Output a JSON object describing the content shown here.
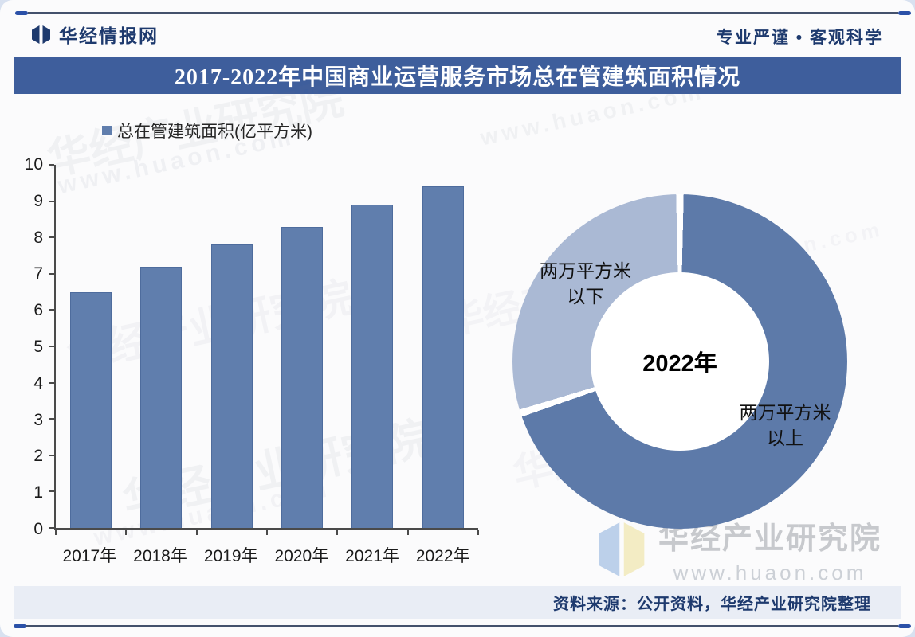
{
  "header": {
    "brand": "华经情报网",
    "slogan": "专业严谨 • 客观科学"
  },
  "title": "2017-2022年中国商业运营服务市场总在管建筑面积情况",
  "legend": {
    "label": "总在管建筑面积(亿平方米)"
  },
  "chart_data": [
    {
      "type": "bar",
      "title": "总在管建筑面积(亿平方米)",
      "categories": [
        "2017年",
        "2018年",
        "2019年",
        "2020年",
        "2021年",
        "2022年"
      ],
      "values": [
        6.5,
        7.2,
        7.8,
        8.3,
        8.9,
        9.4
      ],
      "xlabel": "",
      "ylabel": "",
      "ylim": [
        0,
        10
      ],
      "ytick_step": 1,
      "grid": false,
      "legend_position": "top-left",
      "bar_color": "#607ead",
      "bar_border_color": "#4e6c9d"
    },
    {
      "type": "pie",
      "donut": true,
      "center_label": "2022年",
      "start_angle_deg": 0,
      "direction": "clockwise",
      "slices": [
        {
          "label": "两万平方米以上",
          "lines": [
            "两万平方米",
            "以上"
          ],
          "value": 70,
          "color": "#5d7aa9"
        },
        {
          "label": "两万平方米以下",
          "lines": [
            "两万平方米",
            "以下"
          ],
          "value": 30,
          "color": "#aab9d4"
        }
      ]
    }
  ],
  "watermark": {
    "name": "华经产业研究院",
    "url": "www.huaon.com"
  },
  "footer": {
    "source": "资料来源：公开资料，华经产业研究院整理"
  },
  "colors": {
    "title_bar_bg": "#3e5e9c",
    "brand_blue": "#1e3a6e",
    "divider_dash": "#2b51a8",
    "divider_line": "#44516c",
    "footer_bar_bg": "#e9edf5",
    "axis_color": "#4a4a4a"
  }
}
